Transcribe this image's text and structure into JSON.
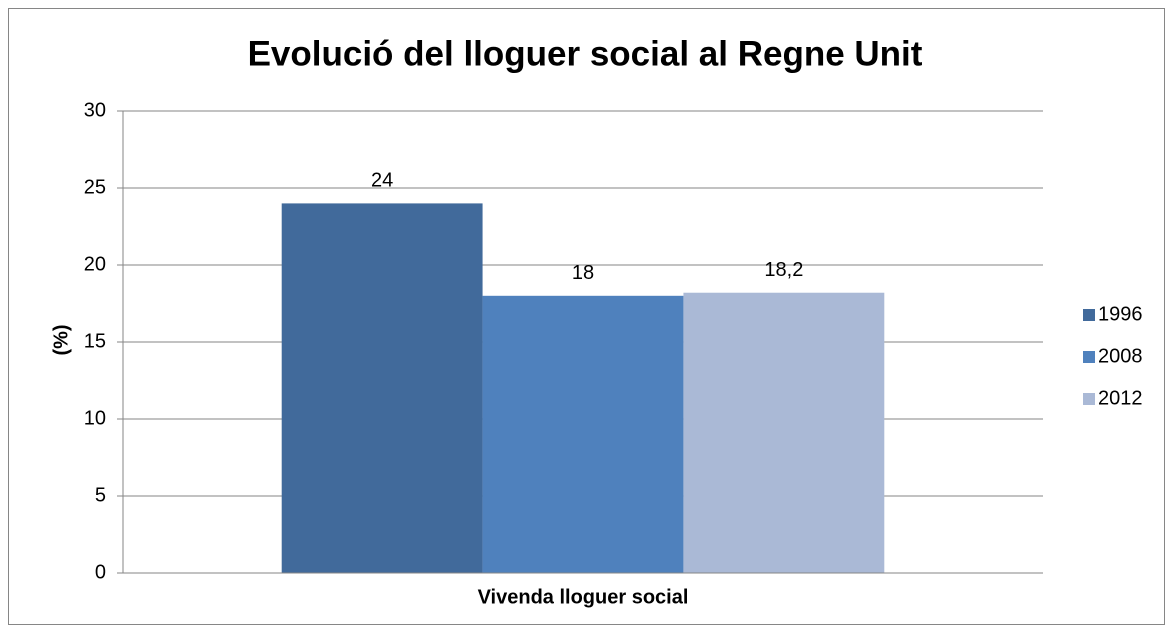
{
  "chart_data": {
    "type": "bar",
    "title": "Evolució del lloguer social al Regne Unit",
    "ylabel": "(%)",
    "categories": [
      "Vivenda lloguer social"
    ],
    "series": [
      {
        "name": "1996",
        "color": "#416a9b",
        "values": [
          24
        ]
      },
      {
        "name": "2008",
        "color": "#4f81bd",
        "values": [
          18
        ]
      },
      {
        "name": "2012",
        "color": "#aab9d6",
        "values": [
          18.2
        ],
        "value_labels": [
          "18,2"
        ]
      }
    ],
    "ylim": [
      0,
      30
    ],
    "yticks": [
      0,
      5,
      10,
      15,
      20,
      25,
      30
    ],
    "grid": true,
    "legend": "right"
  }
}
